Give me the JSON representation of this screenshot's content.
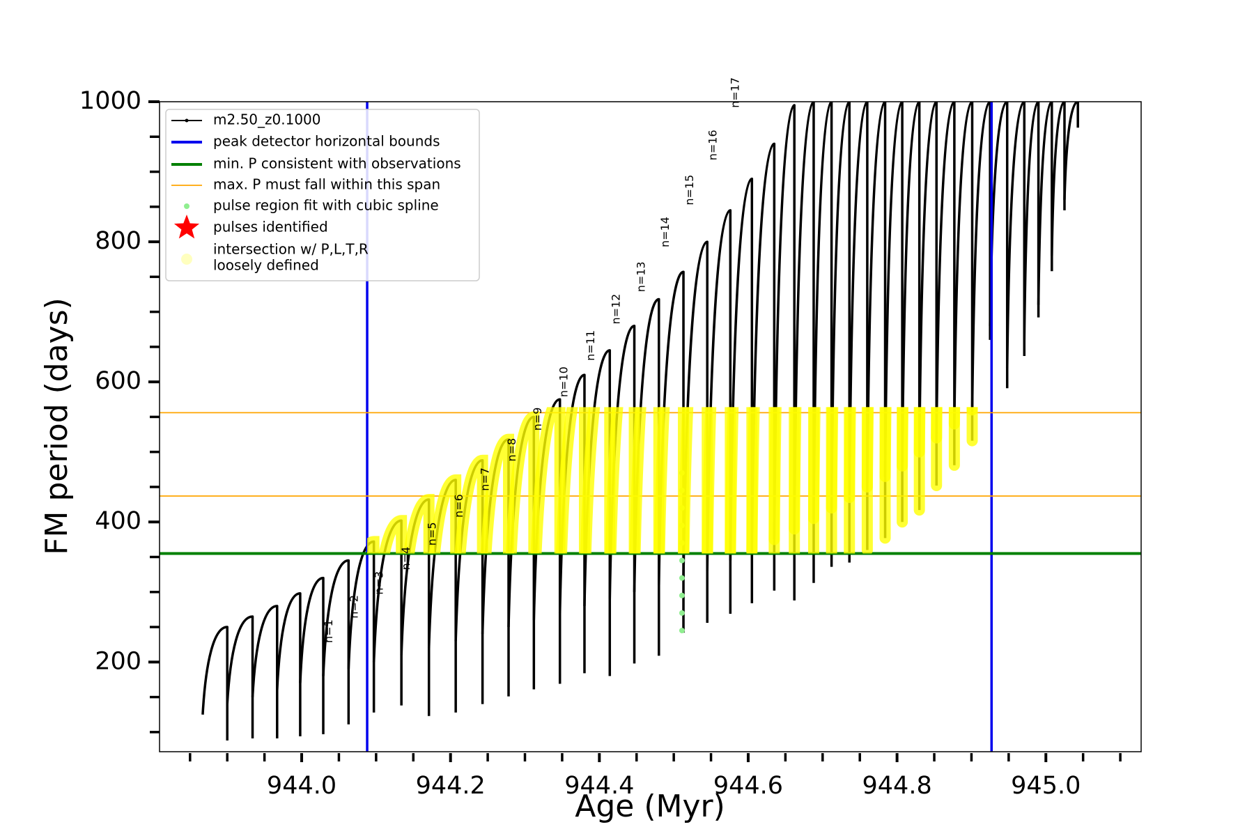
{
  "chart_data": {
    "type": "pulses",
    "xlabel": "Age (Myr)",
    "ylabel": "FM period (days)",
    "xlim": [
      943.809,
      945.128
    ],
    "ylim": [
      72,
      1000
    ],
    "xticks": [
      {
        "value": 944.0,
        "label": "944.0"
      },
      {
        "value": 944.2,
        "label": "944.2"
      },
      {
        "value": 944.4,
        "label": "944.4"
      },
      {
        "value": 944.6,
        "label": "944.6"
      },
      {
        "value": 944.8,
        "label": "944.8"
      },
      {
        "value": 945.0,
        "label": "945.0"
      }
    ],
    "xminorticks": [
      943.85,
      943.9,
      943.95,
      944.05,
      944.1,
      944.15,
      944.25,
      944.3,
      944.35,
      944.45,
      944.5,
      944.55,
      944.65,
      944.7,
      944.75,
      944.85,
      944.9,
      944.95,
      945.05,
      945.1
    ],
    "yticks": [
      200,
      400,
      600,
      800,
      1000
    ],
    "yminorticks": [
      100,
      150,
      250,
      300,
      350,
      450,
      500,
      550,
      650,
      700,
      750,
      850,
      900,
      950
    ],
    "series": [
      {
        "name": "m2.50_z0.1000",
        "color": "#000000",
        "pulses": [
          {
            "start": 943.867,
            "end": 943.9,
            "base": 125,
            "peak": 250,
            "low": 88
          },
          {
            "start": 943.9,
            "end": 943.934,
            "base": 140,
            "peak": 265,
            "low": 91
          },
          {
            "start": 943.934,
            "end": 943.967,
            "base": 150,
            "peak": 280,
            "low": 91
          },
          {
            "start": 943.967,
            "end": 943.998,
            "base": 160,
            "peak": 298,
            "low": 94
          },
          {
            "start": 943.998,
            "end": 944.029,
            "base": 170,
            "peak": 320,
            "low": 97
          },
          {
            "start": 944.029,
            "end": 944.063,
            "base": 180,
            "peak": 345,
            "low": 111
          },
          {
            "start": 944.063,
            "end": 944.097,
            "base": 190,
            "peak": 372,
            "low": 128
          },
          {
            "start": 944.097,
            "end": 944.134,
            "base": 200,
            "peak": 402,
            "low": 138
          },
          {
            "start": 944.134,
            "end": 944.171,
            "base": 210,
            "peak": 432,
            "low": 123
          },
          {
            "start": 944.171,
            "end": 944.207,
            "base": 220,
            "peak": 460,
            "low": 128
          },
          {
            "start": 944.207,
            "end": 944.243,
            "base": 230,
            "peak": 488,
            "low": 140
          },
          {
            "start": 944.243,
            "end": 944.278,
            "base": 240,
            "peak": 518,
            "low": 151
          },
          {
            "start": 944.278,
            "end": 944.312,
            "base": 250,
            "peak": 550,
            "low": 161
          },
          {
            "start": 944.312,
            "end": 944.347,
            "base": 260,
            "peak": 575,
            "low": 169
          },
          {
            "start": 944.347,
            "end": 944.38,
            "base": 270,
            "peak": 610,
            "low": 184
          },
          {
            "start": 944.38,
            "end": 944.414,
            "base": 280,
            "peak": 645,
            "low": 180
          },
          {
            "start": 944.414,
            "end": 944.447,
            "base": 290,
            "peak": 680,
            "low": 198
          },
          {
            "start": 944.447,
            "end": 944.48,
            "base": 300,
            "peak": 718,
            "low": 209
          },
          {
            "start": 944.48,
            "end": 944.513,
            "base": 310,
            "peak": 757,
            "low": 242
          },
          {
            "start": 944.513,
            "end": 944.545,
            "base": 320,
            "peak": 800,
            "low": 256
          },
          {
            "start": 944.545,
            "end": 944.576,
            "base": 330,
            "peak": 845,
            "low": 269
          },
          {
            "start": 944.576,
            "end": 944.605,
            "base": 345,
            "peak": 890,
            "low": 284
          },
          {
            "start": 944.605,
            "end": 944.635,
            "base": 360,
            "peak": 940,
            "low": 302
          },
          {
            "start": 944.635,
            "end": 944.662,
            "base": 375,
            "peak": 995,
            "low": 288
          },
          {
            "start": 944.662,
            "end": 944.688,
            "base": 390,
            "peak": 1000,
            "low": 313
          },
          {
            "start": 944.688,
            "end": 944.712,
            "base": 405,
            "peak": 1000,
            "low": 336
          },
          {
            "start": 944.712,
            "end": 944.736,
            "base": 420,
            "peak": 1000,
            "low": 342
          },
          {
            "start": 944.736,
            "end": 944.76,
            "base": 435,
            "peak": 1000,
            "low": 360
          },
          {
            "start": 944.76,
            "end": 944.784,
            "base": 450,
            "peak": 1000,
            "low": 377
          },
          {
            "start": 944.784,
            "end": 944.807,
            "base": 465,
            "peak": 1000,
            "low": 400
          },
          {
            "start": 944.807,
            "end": 944.83,
            "base": 480,
            "peak": 1000,
            "low": 417
          },
          {
            "start": 944.83,
            "end": 944.853,
            "base": 500,
            "peak": 1000,
            "low": 452
          },
          {
            "start": 944.853,
            "end": 944.877,
            "base": 520,
            "peak": 1000,
            "low": 481
          },
          {
            "start": 944.877,
            "end": 944.901,
            "base": 540,
            "peak": 1000,
            "low": 516
          },
          {
            "start": 944.901,
            "end": 944.925,
            "base": 560,
            "peak": 1000,
            "low": 660
          },
          {
            "start": 944.925,
            "end": 944.948,
            "base": 680,
            "peak": 1000,
            "low": 591
          },
          {
            "start": 944.948,
            "end": 944.971,
            "base": 620,
            "peak": 1000,
            "low": 637
          },
          {
            "start": 944.971,
            "end": 944.99,
            "base": 660,
            "peak": 1000,
            "low": 692
          },
          {
            "start": 944.99,
            "end": 945.008,
            "base": 710,
            "peak": 1000,
            "low": 758
          },
          {
            "start": 945.008,
            "end": 945.025,
            "base": 780,
            "peak": 1000,
            "low": 845
          },
          {
            "start": 945.025,
            "end": 945.043,
            "base": 860,
            "peak": 1000,
            "low": 963
          }
        ]
      }
    ],
    "bounds": {
      "name": "peak detector horizontal bounds",
      "color": "#0000ee",
      "x": [
        944.088,
        944.927
      ]
    },
    "min_p": {
      "name": "min. P consistent with observations",
      "color": "#008000",
      "y": 355
    },
    "max_p": {
      "name": "max. P must fall within this span",
      "color": "#ffa500",
      "y": [
        437,
        556
      ]
    },
    "spline": {
      "name": "pulse region fit with cubic spline",
      "color": "#90ee90",
      "x": 944.511,
      "values": [
        245,
        270,
        295,
        320,
        345,
        370,
        395,
        420,
        445,
        470
      ]
    },
    "identified": {
      "name": "pulses identified",
      "color": "#ff0000"
    },
    "intersection": {
      "name": [
        "intersection w/ P,L,T,R",
        "loosely defined"
      ],
      "color": "#ffff00"
    },
    "annotations": [
      {
        "text": "n=1",
        "x": 944.037,
        "y": 244
      },
      {
        "text": "n=2",
        "x": 944.071,
        "y": 279
      },
      {
        "text": "n=3",
        "x": 944.105,
        "y": 313
      },
      {
        "text": "n=4",
        "x": 944.141,
        "y": 348
      },
      {
        "text": "n=5",
        "x": 944.176,
        "y": 383
      },
      {
        "text": "n=6",
        "x": 944.212,
        "y": 423
      },
      {
        "text": "n=7",
        "x": 944.247,
        "y": 461
      },
      {
        "text": "n=8",
        "x": 944.283,
        "y": 503
      },
      {
        "text": "n=9",
        "x": 944.318,
        "y": 547
      },
      {
        "text": "n=10",
        "x": 944.353,
        "y": 600
      },
      {
        "text": "n=11",
        "x": 944.389,
        "y": 652
      },
      {
        "text": "n=12",
        "x": 944.423,
        "y": 704
      },
      {
        "text": "n=13",
        "x": 944.457,
        "y": 750
      },
      {
        "text": "n=14",
        "x": 944.489,
        "y": 814
      },
      {
        "text": "n=15",
        "x": 944.522,
        "y": 874
      },
      {
        "text": "n=16",
        "x": 944.553,
        "y": 938
      },
      {
        "text": "n=17",
        "x": 944.583,
        "y": 1013
      }
    ]
  }
}
